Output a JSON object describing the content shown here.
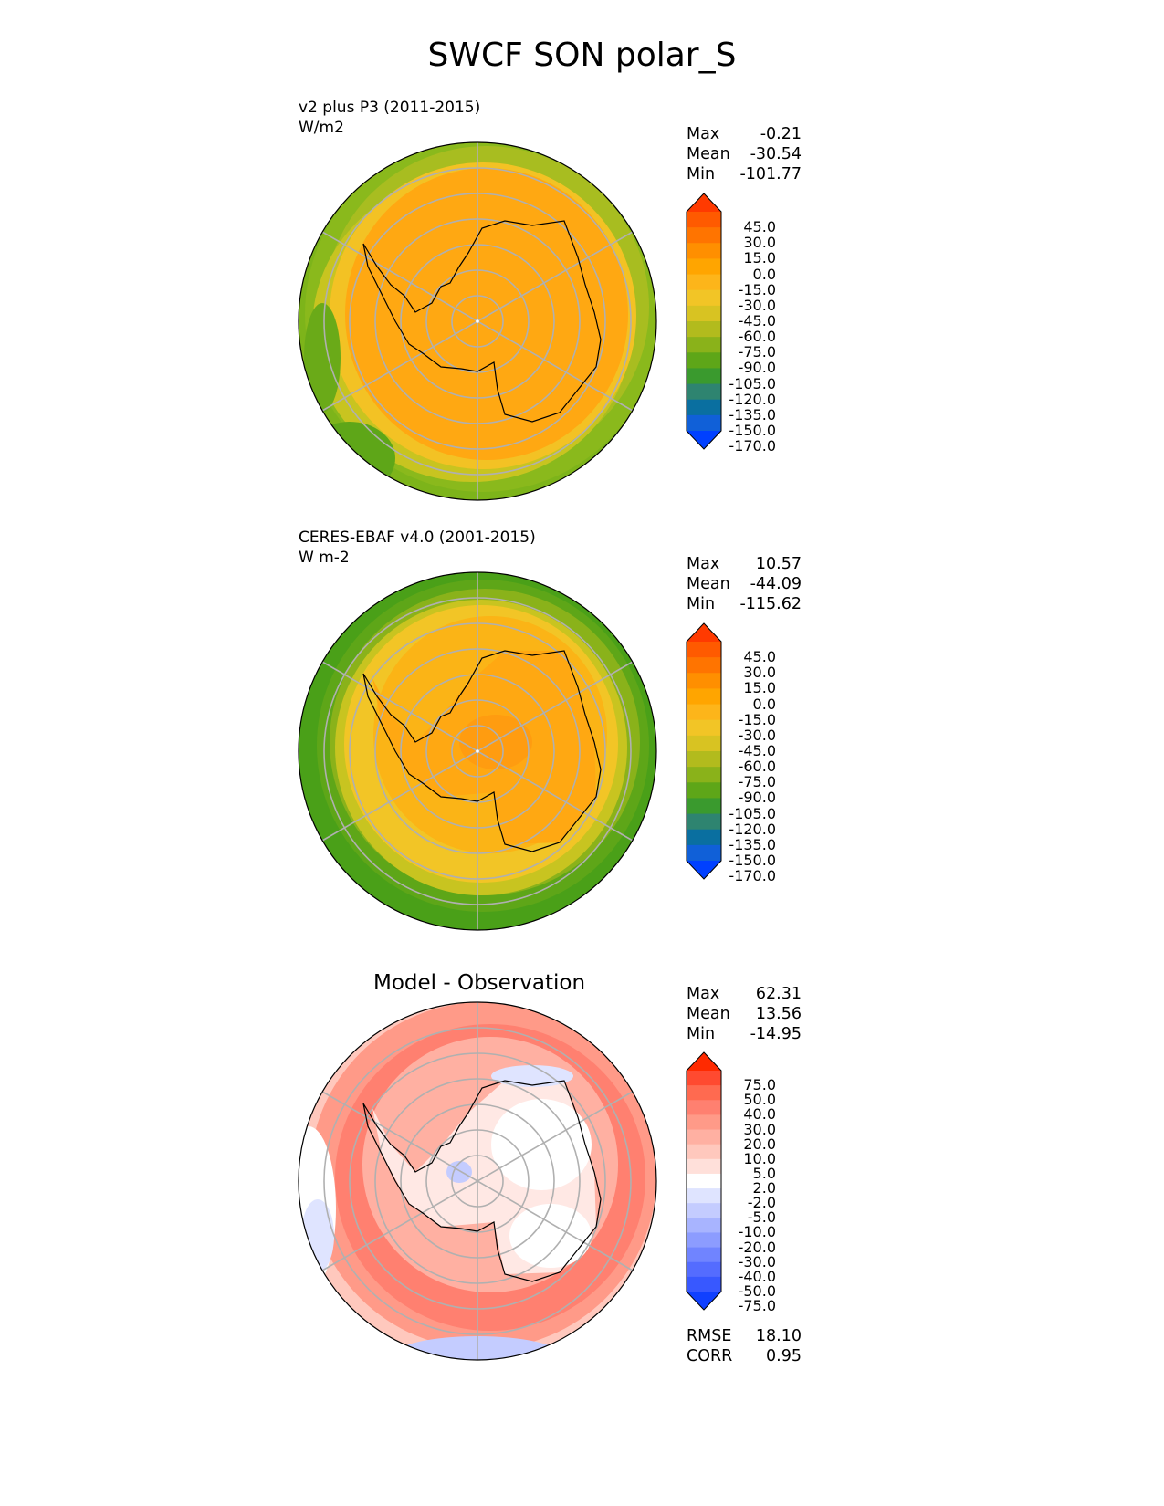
{
  "title": "SWCF SON polar_S",
  "panels": [
    {
      "id": "model",
      "label_line1": "v2 plus P3 (2011-2015)",
      "label_line2": "W/m2",
      "stats": {
        "max_label": "Max",
        "max": "-0.21",
        "mean_label": "Mean",
        "mean": "-30.54",
        "min_label": "Min",
        "min": "-101.77"
      },
      "colorbar_ticks": [
        "45.0",
        "30.0",
        "15.0",
        "0.0",
        "-15.0",
        "-30.0",
        "-45.0",
        "-60.0",
        "-75.0",
        "-90.0",
        "-105.0",
        "-120.0",
        "-135.0",
        "-150.0",
        "-170.0"
      ],
      "colorbar_colors": [
        "#ff3a00",
        "#ff5a00",
        "#ff7400",
        "#ff8f00",
        "#ffa500",
        "#fdb51a",
        "#f2c526",
        "#d8c322",
        "#b2bb1d",
        "#8ab21a",
        "#5ea618",
        "#3a9a2e",
        "#2e8470",
        "#0a6fa0",
        "#1060d8",
        "#0040ff"
      ]
    },
    {
      "id": "obs",
      "label_line1": "CERES-EBAF v4.0 (2001-2015)",
      "label_line2": "W m-2",
      "stats": {
        "max_label": "Max",
        "max": "10.57",
        "mean_label": "Mean",
        "mean": "-44.09",
        "min_label": "Min",
        "min": "-115.62"
      },
      "colorbar_ticks": [
        "45.0",
        "30.0",
        "15.0",
        "0.0",
        "-15.0",
        "-30.0",
        "-45.0",
        "-60.0",
        "-75.0",
        "-90.0",
        "-105.0",
        "-120.0",
        "-135.0",
        "-150.0",
        "-170.0"
      ],
      "colorbar_colors": [
        "#ff3a00",
        "#ff5a00",
        "#ff7400",
        "#ff8f00",
        "#ffa500",
        "#fdb51a",
        "#f2c526",
        "#d8c322",
        "#b2bb1d",
        "#8ab21a",
        "#5ea618",
        "#3a9a2e",
        "#2e8470",
        "#0a6fa0",
        "#1060d8",
        "#0040ff"
      ]
    },
    {
      "id": "diff",
      "title": "Model - Observation",
      "stats": {
        "max_label": "Max",
        "max": "62.31",
        "mean_label": "Mean",
        "mean": "13.56",
        "min_label": "Min",
        "min": "-14.95"
      },
      "extra": {
        "rmse_label": "RMSE",
        "rmse": "18.10",
        "corr_label": "CORR",
        "corr": "0.95"
      },
      "colorbar_ticks": [
        "75.0",
        "50.0",
        "40.0",
        "30.0",
        "20.0",
        "10.0",
        "5.0",
        "2.0",
        "-2.0",
        "-5.0",
        "-10.0",
        "-20.0",
        "-30.0",
        "-40.0",
        "-50.0",
        "-75.0"
      ],
      "colorbar_colors": [
        "#ff2a00",
        "#ff4a30",
        "#ff6a50",
        "#ff8070",
        "#ff9a88",
        "#ffb0a2",
        "#ffc8bd",
        "#ffe0da",
        "#ffffff",
        "#dfe4ff",
        "#c4ccff",
        "#a8b4ff",
        "#8c9cff",
        "#7084ff",
        "#546cff",
        "#3858ff",
        "#1040ff"
      ]
    }
  ]
}
